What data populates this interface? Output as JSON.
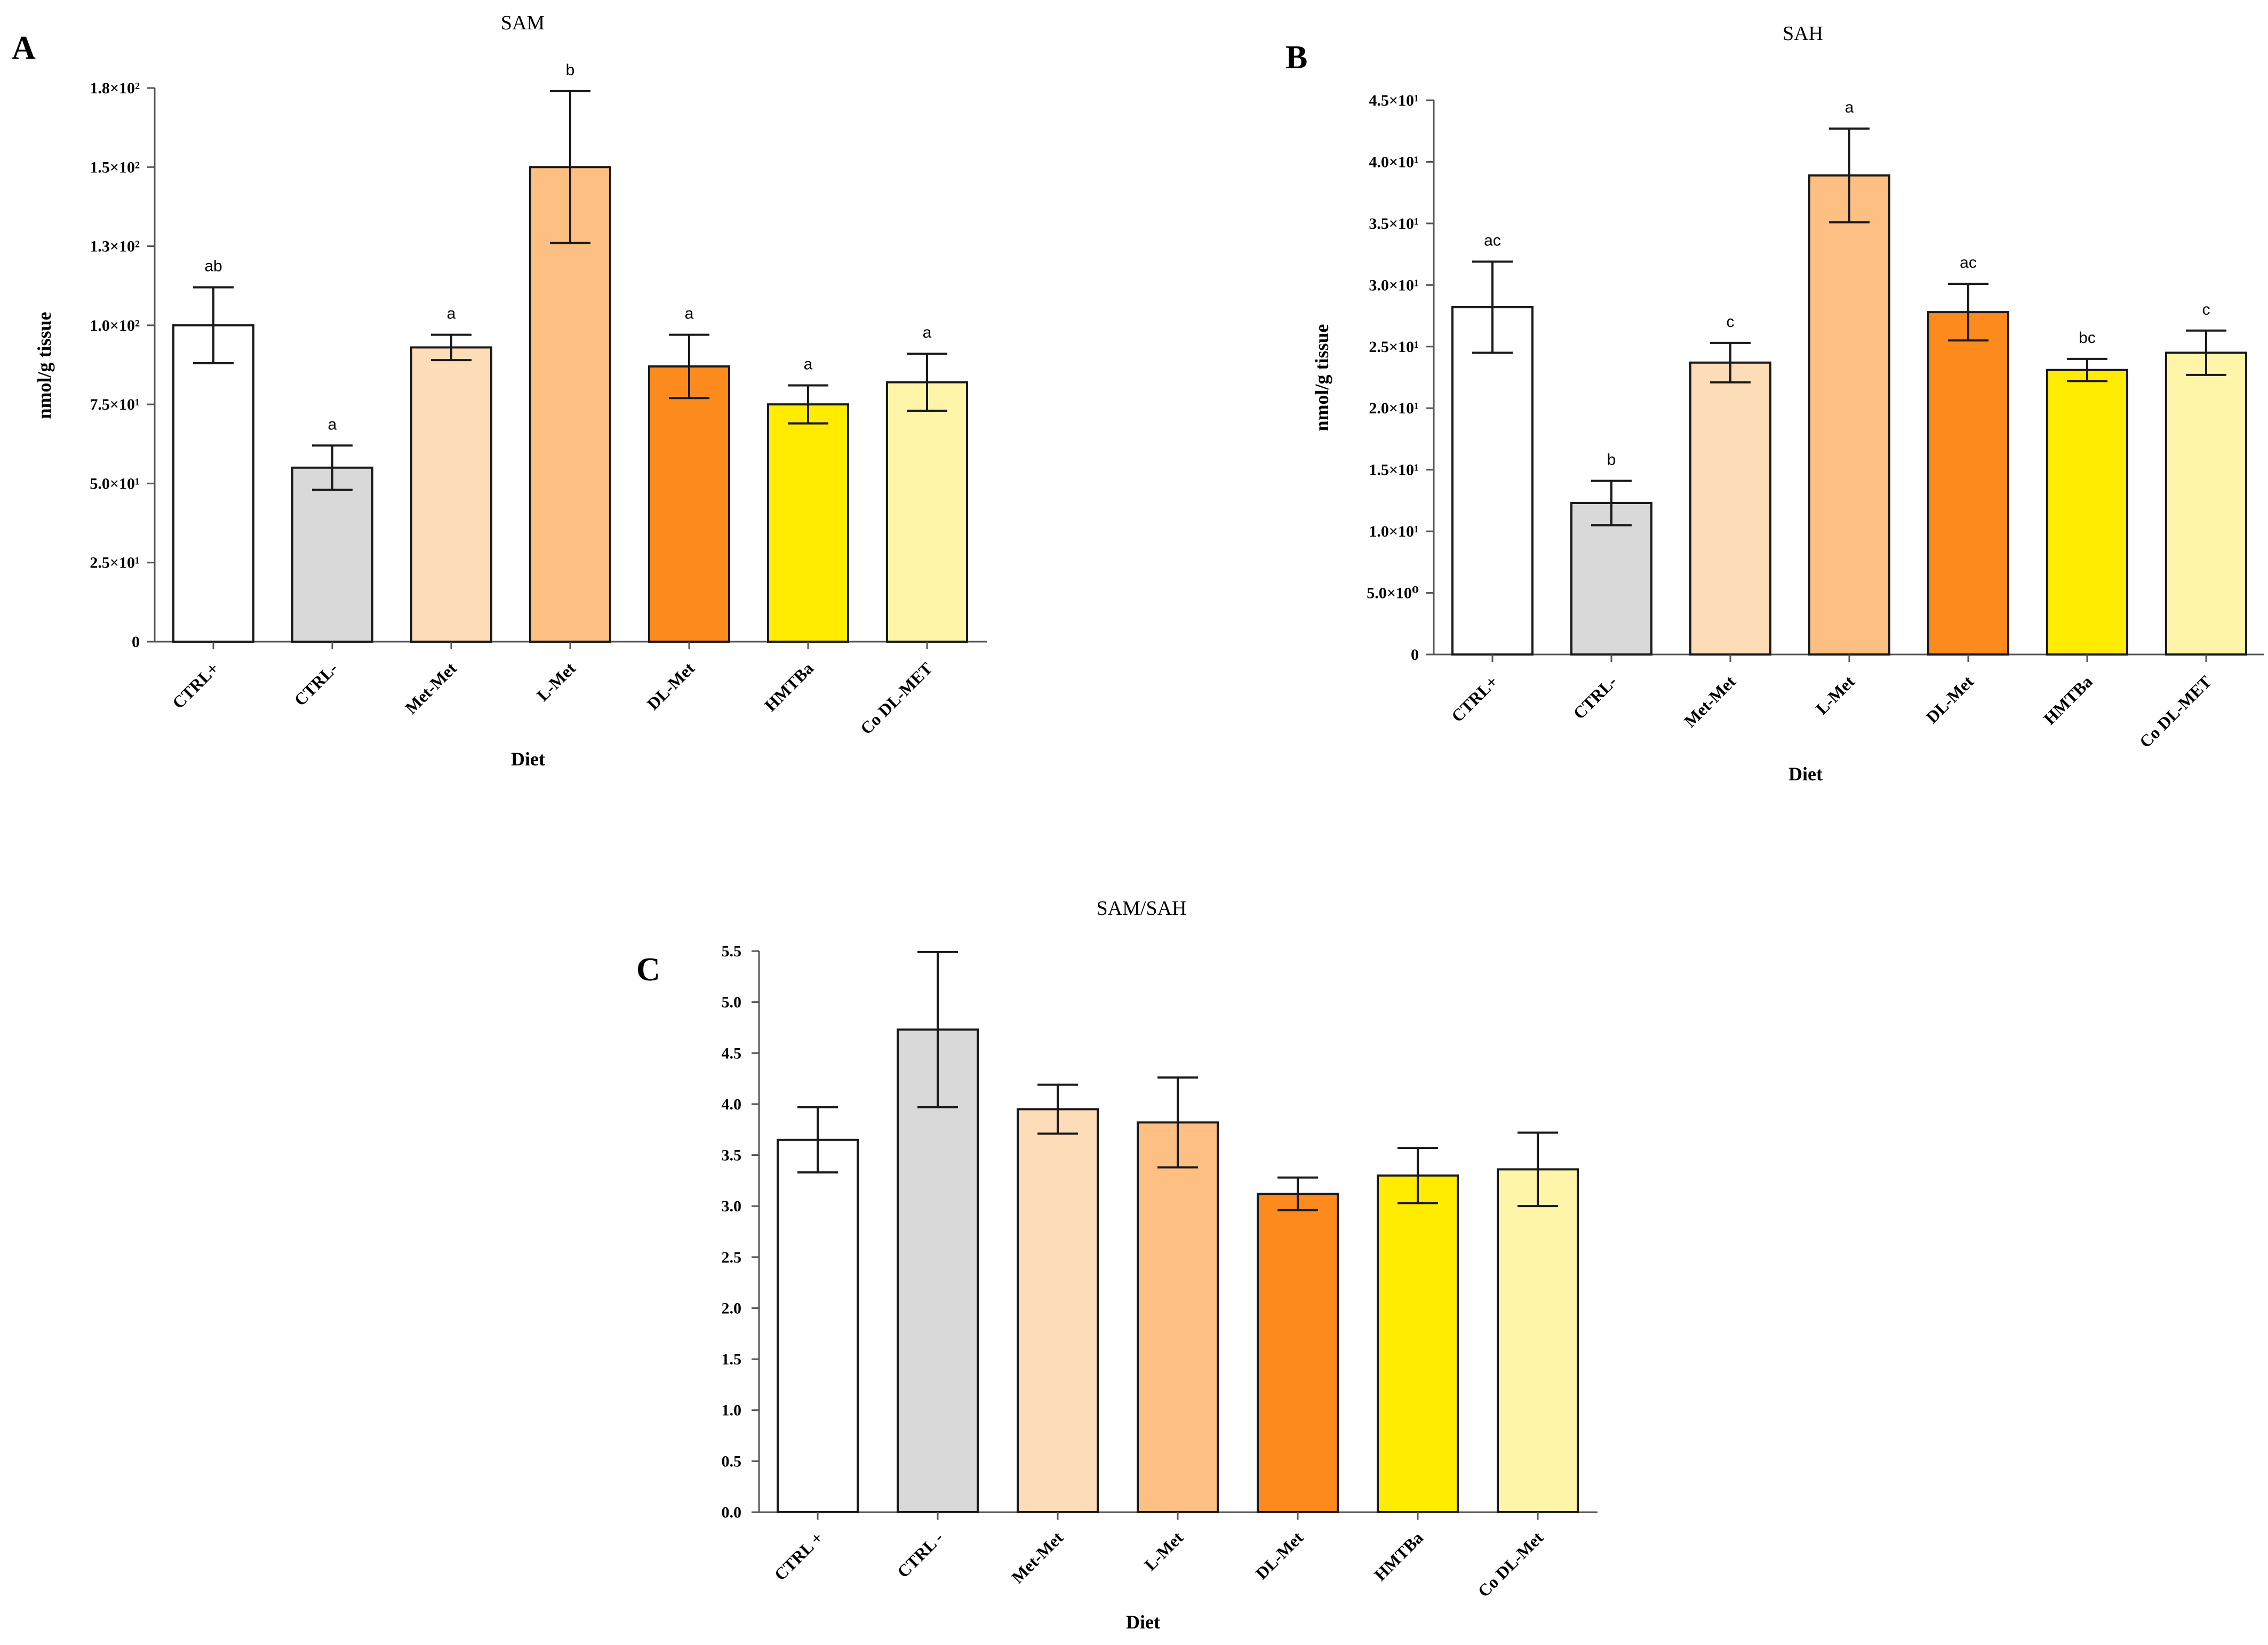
{
  "chart_data": [
    {
      "panel": "A",
      "type": "bar",
      "title": "SAM",
      "xlabel": "Diet",
      "ylabel": "nmol/g tissue",
      "ylim": [
        0,
        175
      ],
      "yticks": [
        0,
        25,
        50,
        75,
        100,
        125,
        150,
        175
      ],
      "ytick_labels": [
        "0",
        "2.5×10¹",
        "5.0×10¹",
        "7.5×10¹",
        "1.0×10²",
        "1.3×10²",
        "1.5×10²",
        "1.8×10²"
      ],
      "categories": [
        "CTRL+",
        "CTRL-",
        "Met-Met",
        "L-Met",
        "DL-Met",
        "HMTBa",
        "Co DL-MET"
      ],
      "values": [
        100,
        55,
        93,
        150,
        87,
        75,
        82
      ],
      "errors": [
        12,
        7,
        4,
        24,
        10,
        6,
        9
      ],
      "significance": [
        "ab",
        "a",
        "a",
        "b",
        "a",
        "a",
        "a"
      ],
      "colors": [
        "#ffffff",
        "#d9d9d9",
        "#fddcb8",
        "#fdbf82",
        "#fc8a1c",
        "#ffec00",
        "#fff5a8"
      ]
    },
    {
      "panel": "B",
      "type": "bar",
      "title": "SAH",
      "xlabel": "Diet",
      "ylabel": "nmol/g tissue",
      "ylim": [
        0,
        45
      ],
      "yticks": [
        0,
        5,
        10,
        15,
        20,
        25,
        30,
        35,
        40,
        45
      ],
      "ytick_labels": [
        "0",
        "5.0×10⁰",
        "1.0×10¹",
        "1.5×10¹",
        "2.0×10¹",
        "2.5×10¹",
        "3.0×10¹",
        "3.5×10¹",
        "4.0×10¹",
        "4.5×10¹"
      ],
      "categories": [
        "CTRL+",
        "CTRL-",
        "Met-Met",
        "L-Met",
        "DL-Met",
        "HMTBa",
        "Co DL-MET"
      ],
      "values": [
        28.2,
        12.3,
        23.7,
        38.9,
        27.8,
        23.1,
        24.5
      ],
      "errors": [
        3.7,
        1.8,
        1.6,
        3.8,
        2.3,
        0.9,
        1.8
      ],
      "significance": [
        "ac",
        "b",
        "c",
        "a",
        "ac",
        "bc",
        "c"
      ],
      "colors": [
        "#ffffff",
        "#d9d9d9",
        "#fddcb8",
        "#fdbf82",
        "#fc8a1c",
        "#ffec00",
        "#fff5a8"
      ]
    },
    {
      "panel": "C",
      "type": "bar",
      "title": "SAM/SAH",
      "xlabel": "Diet",
      "ylabel": "",
      "ylim": [
        0,
        5.5
      ],
      "yticks": [
        0,
        0.5,
        1,
        1.5,
        2,
        2.5,
        3,
        3.5,
        4,
        4.5,
        5,
        5.5
      ],
      "ytick_labels": [
        "0.0",
        "0.5",
        "1.0",
        "1.5",
        "2.0",
        "2.5",
        "3.0",
        "3.5",
        "4.0",
        "4.5",
        "5.0",
        "5.5"
      ],
      "categories": [
        "CTRL +",
        "CTRL -",
        "Met-Met",
        "L-Met",
        "DL-Met",
        "HMTBa",
        "Co DL-Met"
      ],
      "values": [
        3.65,
        4.73,
        3.95,
        3.82,
        3.12,
        3.3,
        3.36
      ],
      "errors": [
        0.32,
        0.76,
        0.24,
        0.44,
        0.16,
        0.27,
        0.36
      ],
      "significance": [],
      "colors": [
        "#ffffff",
        "#d9d9d9",
        "#fddcb8",
        "#fdbf82",
        "#fc8a1c",
        "#ffec00",
        "#fff5a8"
      ]
    }
  ]
}
